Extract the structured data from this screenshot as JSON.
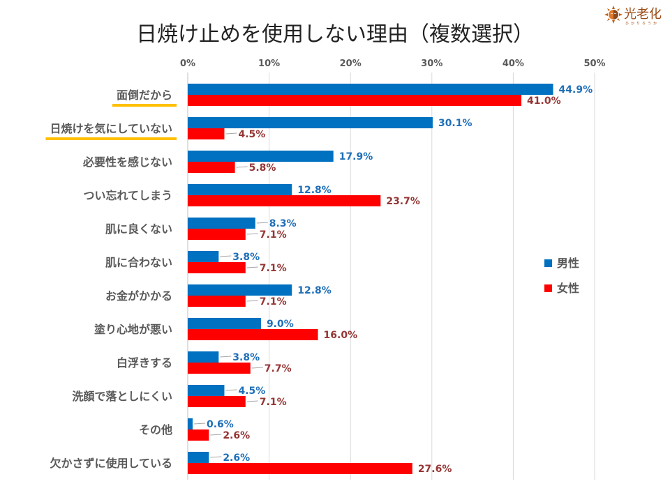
{
  "header": {
    "title": "日焼け止めを使用しない理由（複数選択）",
    "logo_text": "光老化",
    "logo_sub": "ひかりろうか"
  },
  "chart_data": {
    "type": "bar",
    "orientation": "horizontal",
    "title": "日焼け止めを使用しない理由（複数選択）",
    "xlabel": "",
    "ylabel": "",
    "xlim": [
      0,
      50
    ],
    "x_ticks": [
      "0%",
      "10%",
      "20%",
      "30%",
      "40%",
      "50%"
    ],
    "x_tick_values": [
      0,
      10,
      20,
      30,
      40,
      50
    ],
    "x_axis_position": "top",
    "grid": true,
    "legend_position": "right",
    "categories": [
      "面倒だから",
      "日焼けを気にしていない",
      "必要性を感じない",
      "つい忘れてしまう",
      "肌に良くない",
      "肌に合わない",
      "お金がかかる",
      "塗り心地が悪い",
      "白浮きする",
      "洗顔で落としにくい",
      "その他",
      "欠かさずに使用している"
    ],
    "highlighted_categories": [
      "面倒だから",
      "日焼けを気にしていない"
    ],
    "highlight_color": "#ffc000",
    "series": [
      {
        "name": "男性",
        "color": "#0070c0",
        "label_color": "#1f6fb8",
        "values": [
          44.9,
          30.1,
          17.9,
          12.8,
          8.3,
          3.8,
          12.8,
          9.0,
          3.8,
          4.5,
          0.6,
          2.6
        ],
        "labels": [
          "44.9%",
          "30.1%",
          "17.9%",
          "12.8%",
          "8.3%",
          "3.8%",
          "12.8%",
          "9.0%",
          "3.8%",
          "4.5%",
          "0.6%",
          "2.6%"
        ]
      },
      {
        "name": "女性",
        "color": "#ff0000",
        "label_color": "#943634",
        "values": [
          41.0,
          4.5,
          5.8,
          23.7,
          7.1,
          7.1,
          7.1,
          16.0,
          7.7,
          7.1,
          2.6,
          27.6
        ],
        "labels": [
          "41.0%",
          "4.5%",
          "5.8%",
          "23.7%",
          "7.1%",
          "7.1%",
          "7.1%",
          "16.0%",
          "7.7%",
          "7.1%",
          "2.6%",
          "27.6%"
        ]
      }
    ]
  }
}
